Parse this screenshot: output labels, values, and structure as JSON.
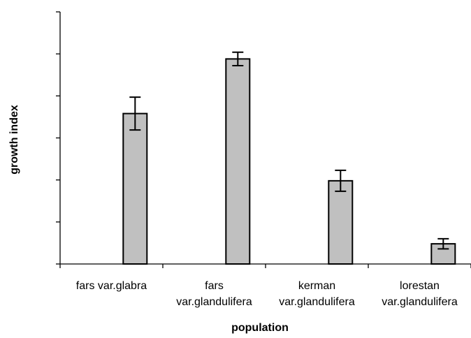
{
  "chart_data": {
    "type": "bar",
    "title": "",
    "xlabel": "population",
    "ylabel": "growth index",
    "categories": [
      [
        "fars var.glabra"
      ],
      [
        "fars",
        "var.glandulifera"
      ],
      [
        "kerman",
        "var.glandulifera"
      ],
      [
        "lorestan",
        "var.glandulifera"
      ]
    ],
    "values": [
      3.58,
      4.88,
      1.98,
      0.48
    ],
    "error": [
      0.39,
      0.16,
      0.25,
      0.12
    ],
    "ylim": [
      0,
      6
    ],
    "y_ticks": [
      0,
      1,
      2,
      3,
      4,
      5,
      6
    ],
    "y_tick_labels_shown": false,
    "grid": false,
    "legend": "none",
    "bar_fill": "#c0c0c0",
    "bar_stroke": "#000000"
  }
}
